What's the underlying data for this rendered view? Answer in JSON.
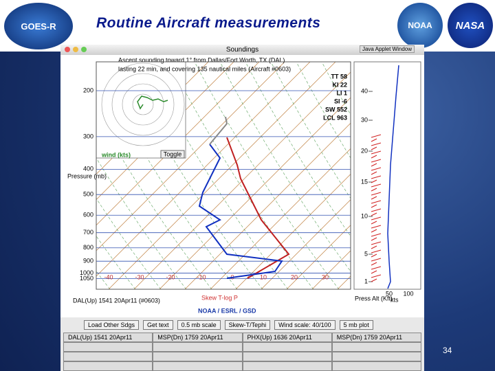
{
  "slide": {
    "title": "Routine Aircraft measurements",
    "page_number": "34",
    "logos": [
      "GOES-R",
      "NOAA",
      "NASA"
    ]
  },
  "window": {
    "title": "Soundings",
    "badge": "Java Applet Window",
    "description": [
      "Ascent sounding toward 1° from Dallas/Fort Worth, TX (DAL)",
      "lasting 22 min, and covering 135 nautical miles (Aircraft #0603)"
    ],
    "indices": [
      "TT 58",
      "KI 22",
      "LI 1",
      "SI -6",
      "SW 552",
      "LCL 963"
    ],
    "hodograph": {
      "label": "wind (kts)",
      "button": "Toggle"
    },
    "pressure_axis": {
      "title": "Pressure (mb)",
      "ticks": [
        "200",
        "300",
        "400",
        "500",
        "600",
        "700",
        "800",
        "900",
        "1000",
        "1050"
      ]
    },
    "temperature_ticks": [
      "-40",
      "-30",
      "-20",
      "-10",
      "0",
      "10",
      "20",
      "30"
    ],
    "chart_caption": "Skew T-log P",
    "source": "NOAA / ESRL / GSD",
    "station_label": "DAL(Up) 1541 20Apr11 (#0603)",
    "wind_axis": {
      "title": "Press Alt (Kft)",
      "ticks": [
        "40",
        "30",
        "20",
        "15",
        "10",
        "5",
        "1"
      ],
      "speed_label": "kts",
      "speed_ticks": [
        "50",
        "100"
      ]
    },
    "buttons": [
      "Load Other Sdgs",
      "Get text",
      "0.5 mb scale",
      "Skew-T/Tephi",
      "Wind scale: 40/100",
      "5 mb plot"
    ],
    "soundings": [
      "DAL(Up) 1541 20Apr11",
      "MSP(Dn) 1759 20Apr11",
      "PHX(Up) 1636 20Apr11",
      "MSP(Dn) 1759 20Apr11"
    ]
  }
}
